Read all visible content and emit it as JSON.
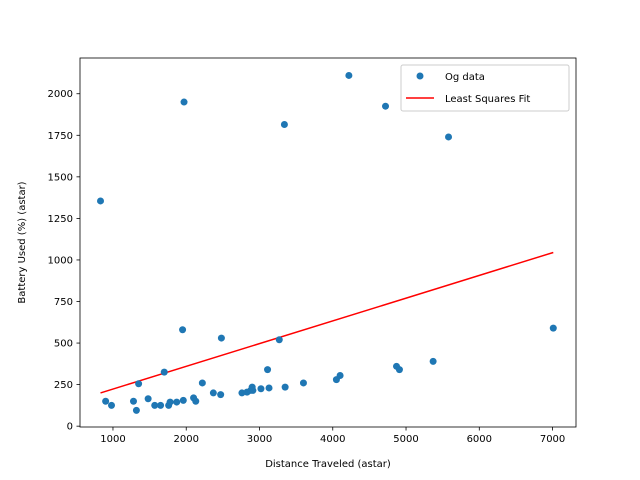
{
  "chart_data": {
    "type": "scatter",
    "xlabel": "Distance Traveled (astar)",
    "ylabel": "Battery Used (%) (astar)",
    "xlim": [
      550,
      7320
    ],
    "ylim": [
      -5,
      2215
    ],
    "xticks": [
      1000,
      2000,
      3000,
      4000,
      5000,
      6000,
      7000
    ],
    "yticks": [
      0,
      250,
      500,
      750,
      1000,
      1250,
      1500,
      1750,
      2000
    ],
    "grid": false,
    "legend_position": "top-right",
    "colors": {
      "points": "#1f77b4",
      "fit": "#ff0000"
    },
    "series": [
      {
        "name": "Og data",
        "kind": "points",
        "x": [
          830,
          900,
          980,
          1280,
          1320,
          1350,
          1480,
          1570,
          1650,
          1700,
          1760,
          1780,
          1870,
          1950,
          1960,
          1970,
          2100,
          2130,
          2220,
          2370,
          2470,
          2480,
          2760,
          2830,
          2880,
          2900,
          2910,
          3020,
          3110,
          3130,
          3270,
          3340,
          3350,
          3600,
          4050,
          4100,
          4220,
          4720,
          4870,
          4910,
          5370,
          5580,
          7010
        ],
        "y": [
          1355,
          150,
          125,
          150,
          95,
          255,
          165,
          125,
          125,
          325,
          125,
          145,
          145,
          580,
          155,
          1950,
          170,
          150,
          260,
          200,
          190,
          530,
          200,
          205,
          215,
          235,
          215,
          225,
          340,
          230,
          520,
          1815,
          235,
          260,
          280,
          305,
          2110,
          1925,
          360,
          340,
          390,
          1740,
          590
        ]
      },
      {
        "name": "Least Squares Fit",
        "kind": "line",
        "x": [
          830,
          7010
        ],
        "y": [
          200,
          1045
        ]
      }
    ]
  }
}
